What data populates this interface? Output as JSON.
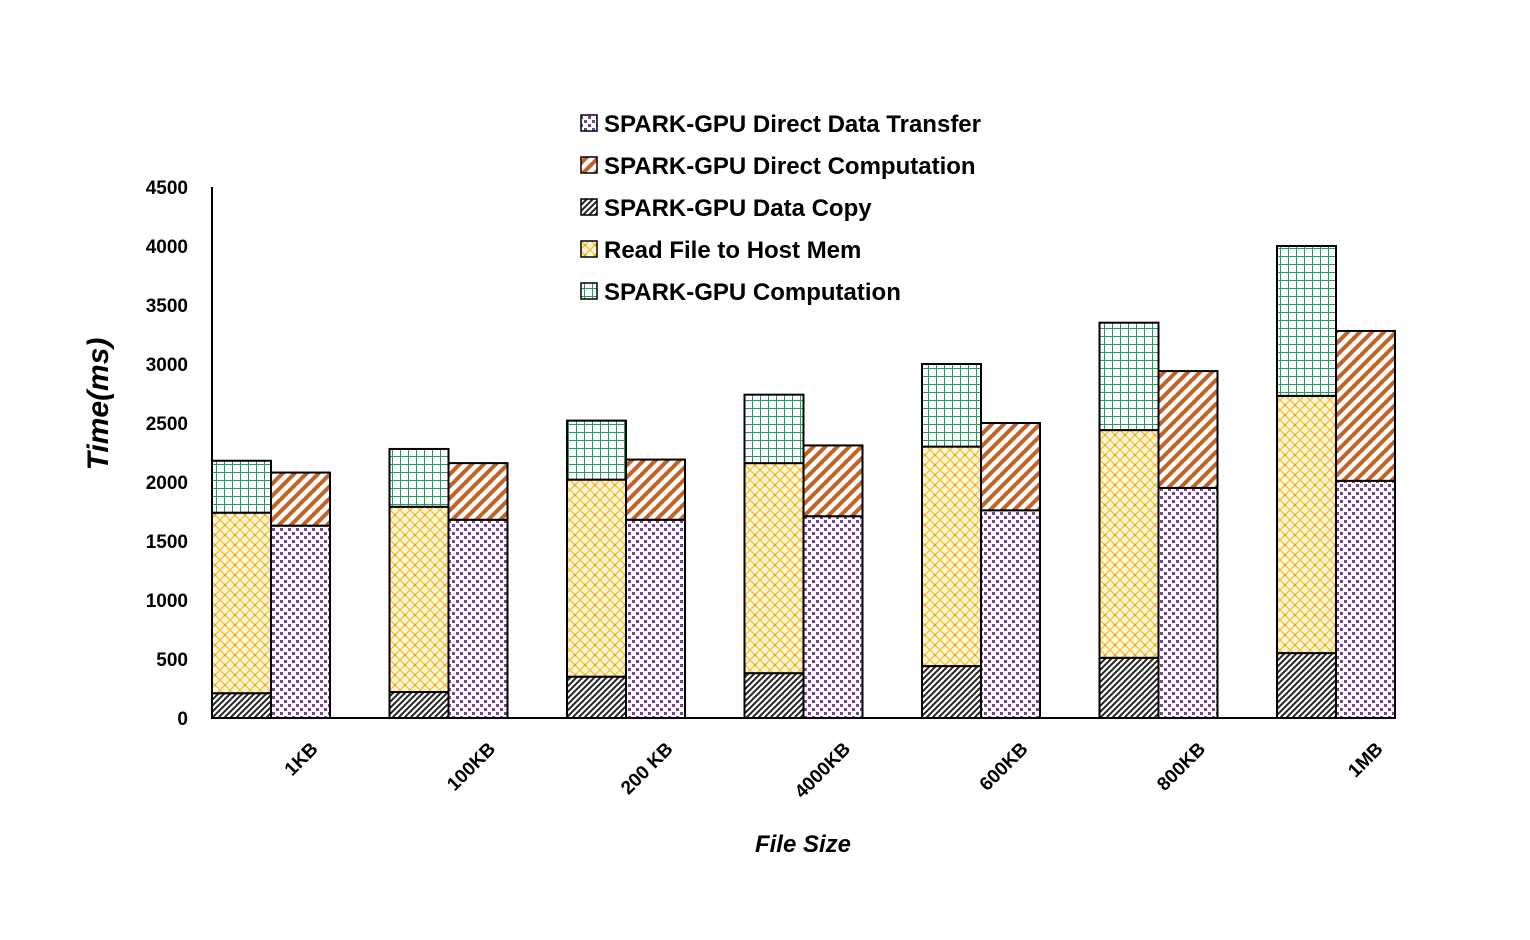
{
  "chart_data": {
    "type": "bar",
    "stacked": true,
    "xlabel": "File Size",
    "ylabel": "Time(ms)",
    "ylim": [
      0,
      4500
    ],
    "yticks": [
      0,
      500,
      1000,
      1500,
      2000,
      2500,
      3000,
      3500,
      4000,
      4500
    ],
    "categories": [
      "1KB",
      "100KB",
      "200 KB",
      "4000KB",
      "600KB",
      "800KB",
      "1MB"
    ],
    "legend_position": "top-center",
    "legend": [
      "SPARK-GPU Direct Data Transfer",
      "SPARK-GPU Direct Computation",
      "SPARK-GPU Data Copy",
      "Read File to Host Mem",
      "SPARK-GPU Computation"
    ],
    "stacks": [
      {
        "position": "left",
        "series": [
          {
            "name": "SPARK-GPU Data Copy",
            "values": [
              210,
              220,
              350,
              380,
              440,
              510,
              550
            ],
            "color": "#333333",
            "pattern": "diag-dark"
          },
          {
            "name": "Read File to Host Mem",
            "values": [
              1530,
              1570,
              1670,
              1780,
              1860,
              1930,
              2180
            ],
            "color": "#f5c242",
            "pattern": "lattice-yellow"
          },
          {
            "name": "SPARK-GPU Computation",
            "values": [
              440,
              490,
              500,
              580,
              700,
              910,
              1270
            ],
            "color": "#1e9e5a",
            "pattern": "grid-green"
          }
        ]
      },
      {
        "position": "right",
        "series": [
          {
            "name": "SPARK-GPU Direct Data Transfer",
            "values": [
              1630,
              1680,
              1680,
              1710,
              1760,
              1950,
              2010
            ],
            "color": "#7e3fa3",
            "pattern": "dots-purple"
          },
          {
            "name": "SPARK-GPU Direct Computation",
            "values": [
              450,
              480,
              510,
              600,
              740,
              990,
              1270
            ],
            "color": "#c0652a",
            "pattern": "stripe-orange"
          }
        ]
      }
    ]
  }
}
